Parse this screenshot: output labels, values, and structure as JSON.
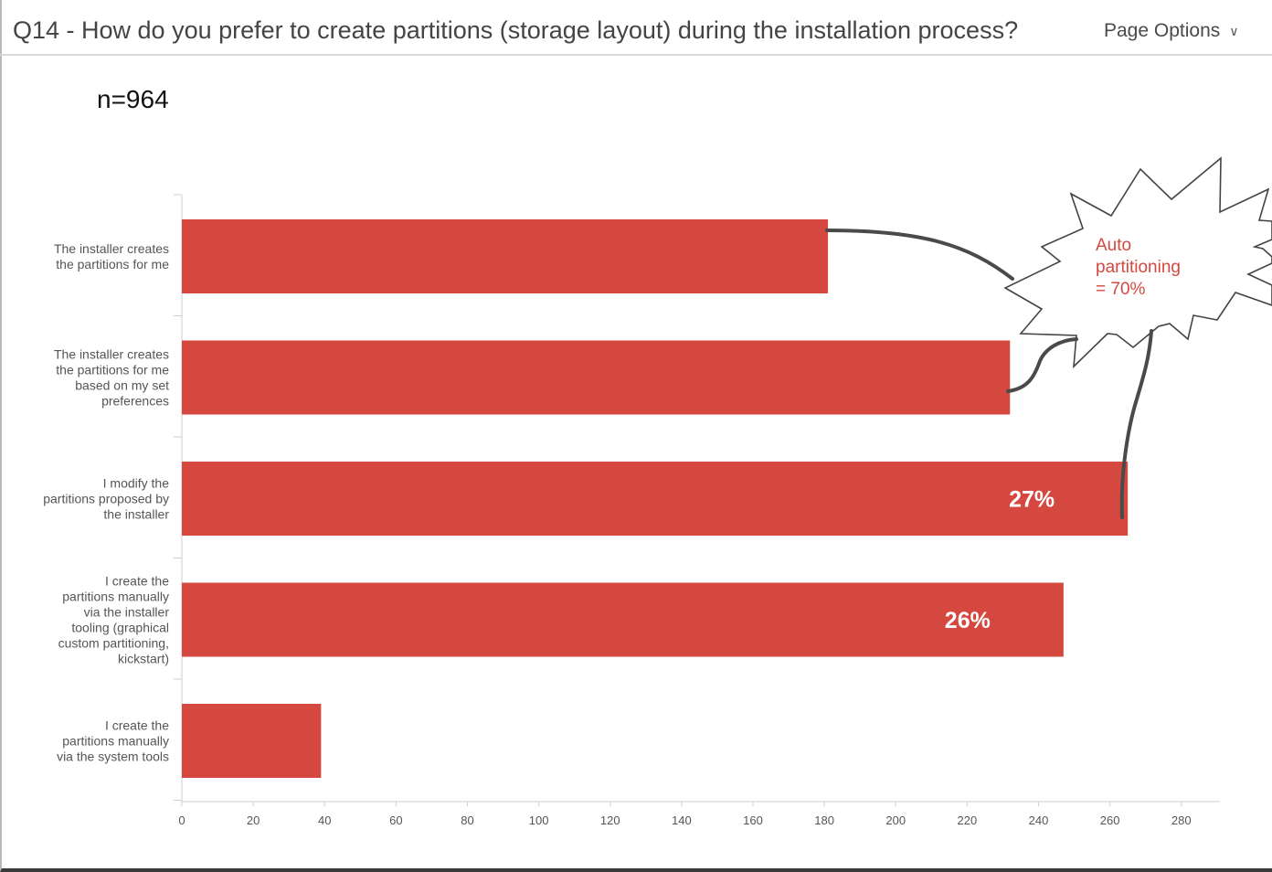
{
  "header": {
    "title": "Q14 - How do you prefer to create partitions (storage layout) during the installation process?",
    "page_options_label": "Page Options"
  },
  "n_label": "n=964",
  "chart_data": {
    "type": "bar",
    "orientation": "horizontal",
    "title": "Q14 - How do you prefer to create partitions (storage layout) during the installation process?",
    "categories": [
      [
        "The installer creates",
        "the partitions for me"
      ],
      [
        "The installer creates",
        "the partitions for me",
        "based on my set",
        "preferences"
      ],
      [
        "I modify the",
        "partitions proposed by",
        "the installer"
      ],
      [
        "I create the",
        "partitions manually",
        "via the installer",
        "tooling (graphical",
        "custom partitioning,",
        "kickstart)"
      ],
      [
        "I create the",
        "partitions manually",
        "via the system tools"
      ]
    ],
    "values": [
      181,
      232,
      265,
      247,
      39
    ],
    "data_labels": [
      "",
      "",
      "27%",
      "26%",
      ""
    ],
    "xlim": [
      0,
      290
    ],
    "xticks": [
      0,
      20,
      40,
      60,
      80,
      100,
      120,
      140,
      160,
      180,
      200,
      220,
      240,
      260,
      280
    ],
    "bar_color": "#d4483f",
    "annotation": {
      "lines": [
        "Auto",
        "partitioning",
        "= 70%"
      ],
      "color": "#d4483f"
    }
  }
}
